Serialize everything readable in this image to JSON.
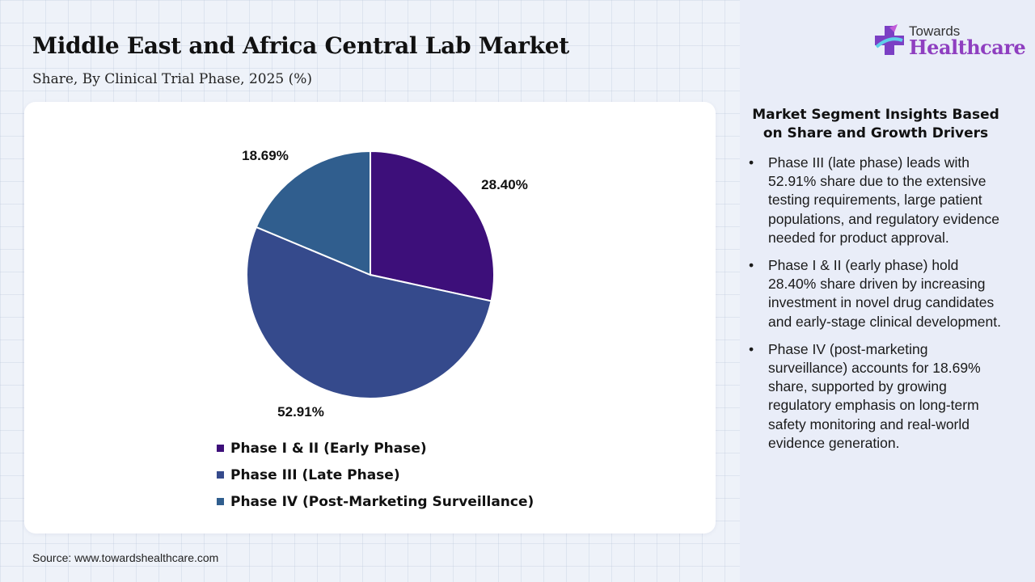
{
  "header": {
    "title": "Middle East and Africa Central Lab Market",
    "subtitle": "Share, By Clinical Trial Phase, 2025 (%)"
  },
  "chart_data": {
    "type": "pie",
    "title": "Middle East and Africa Central Lab Market",
    "subtitle": "Share, By Clinical Trial Phase, 2025 (%)",
    "categories": [
      "Phase I & II (Early Phase)",
      "Phase III (Late Phase)",
      "Phase IV (Post-Marketing Surveillance)"
    ],
    "values": [
      28.4,
      52.91,
      18.69
    ],
    "value_labels": [
      "28.40%",
      "52.91%",
      "18.69%"
    ],
    "colors": [
      "#3d0f7a",
      "#354a8c",
      "#305e8e"
    ],
    "legend_position": "bottom"
  },
  "source": "Source: www.towardshealthcare.com",
  "logo": {
    "top_text": "Towards",
    "bottom_text": "Healthcare"
  },
  "insights": {
    "title": "Market Segment Insights Based on Share and Growth Drivers",
    "bullet": "•",
    "items": [
      "Phase III (late phase) leads with 52.91% share due to the extensive testing requirements, large patient populations, and regulatory evidence needed for product approval.",
      "Phase I & II (early phase) hold 28.40% share driven by increasing investment in novel drug candidates and early-stage clinical development.",
      "Phase IV (post-marketing surveillance) accounts for 18.69% share, supported by growing regulatory emphasis on long-term safety monitoring and real-world evidence generation."
    ]
  }
}
